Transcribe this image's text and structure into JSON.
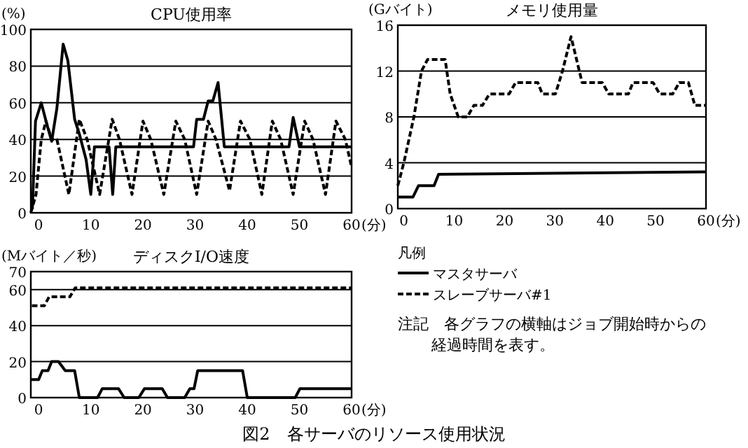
{
  "chart_data": [
    {
      "type": "line",
      "title": "CPU使用率",
      "ylabel": "(%)",
      "xlabel": "(分)",
      "xlim": [
        -1.5,
        60
      ],
      "xticks": [
        0,
        10,
        20,
        30,
        40,
        50,
        60
      ],
      "ylim": [
        0,
        100
      ],
      "yticks": [
        0,
        20,
        40,
        60,
        80,
        100
      ],
      "grid": "y",
      "series": [
        {
          "color": "#000000",
          "line_style": "solid",
          "x": [
            -1.2,
            -0.6,
            0.5,
            1.6,
            2.5,
            3.5,
            4.7,
            5.6,
            6.9,
            7.8,
            9.1,
            10,
            10.7,
            13.5,
            14.2,
            14.8,
            29.7,
            30.3,
            31.6,
            32.5,
            33.4,
            34.4,
            35.6,
            48,
            48.8,
            50,
            60
          ],
          "values": [
            2,
            50,
            60,
            48,
            39,
            57,
            92,
            83,
            51,
            43,
            29,
            10,
            36,
            36,
            10,
            36,
            36,
            51,
            51,
            61,
            61,
            71,
            36,
            36,
            52,
            36,
            36
          ]
        },
        {
          "color": "#000000",
          "line_style": "dashed",
          "x": [
            -1.5,
            -0.5,
            0.5,
            1.4,
            2.5,
            3.5,
            5.8,
            7.8,
            9.3,
            11.7,
            14.1,
            15.5,
            17.9,
            20,
            21.5,
            24,
            26.3,
            28,
            30.3,
            32.5,
            34,
            36.6,
            38.7,
            40.5,
            42.8,
            44.8,
            46.4,
            48.8,
            51,
            52.6,
            55,
            57,
            58.8,
            60
          ],
          "values": [
            0,
            10,
            40,
            50,
            40,
            40,
            10,
            51,
            40,
            10,
            51,
            40,
            10,
            50,
            40,
            10,
            50,
            40,
            10,
            50,
            40,
            12,
            50,
            40,
            10,
            50,
            40,
            10,
            50,
            40,
            10,
            50,
            40,
            25
          ]
        }
      ]
    },
    {
      "type": "line",
      "title": "メモリ使用量",
      "ylabel": "(Gバイト)",
      "xlabel": "(分)",
      "xlim": [
        -1.2,
        60
      ],
      "xticks": [
        0,
        10,
        20,
        30,
        40,
        50,
        60
      ],
      "ylim": [
        0,
        16
      ],
      "yticks": [
        0,
        4,
        8,
        12,
        16
      ],
      "grid": "y",
      "series": [
        {
          "color": "#000000",
          "line_style": "solid",
          "x": [
            -1.2,
            1.8,
            2.9,
            6,
            6.9,
            60
          ],
          "values": [
            1,
            1,
            2,
            2,
            3,
            3.2
          ]
        },
        {
          "color": "#000000",
          "line_style": "dashed",
          "x": [
            -1.2,
            0,
            2,
            3.5,
            4.7,
            8.2,
            9.2,
            10.8,
            12.6,
            13.9,
            15.6,
            17,
            20.9,
            22.2,
            26.6,
            27.5,
            30.1,
            31.5,
            33.2,
            35.4,
            39.4,
            40.7,
            44.6,
            45.5,
            49.5,
            50.8,
            53.4,
            54.7,
            56.5,
            57.8,
            60
          ],
          "values": [
            2,
            4,
            8,
            12,
            13,
            13,
            10,
            8,
            8,
            9,
            9,
            10,
            10,
            11,
            11,
            10,
            10,
            12,
            15,
            11,
            11,
            10,
            10,
            11,
            11,
            10,
            10,
            11,
            11,
            9,
            9
          ]
        }
      ]
    },
    {
      "type": "line",
      "title": "ディスクI/O速度",
      "ylabel": "(Mバイト／秒)",
      "xlabel": "(分)",
      "xlim": [
        -1.5,
        60
      ],
      "xticks": [
        0,
        10,
        20,
        30,
        40,
        50,
        60
      ],
      "ylim": [
        0,
        70
      ],
      "yticks": [
        0,
        20,
        40,
        60,
        70
      ],
      "grid": "y",
      "legend": "right",
      "legend_title": "凡例",
      "series": [
        {
          "name": "マスタサーバ",
          "color": "#000000",
          "line_style": "solid",
          "x": [
            -1.5,
            0,
            0.7,
            1.8,
            2.5,
            3.8,
            5.1,
            6.9,
            7.8,
            11.3,
            12.2,
            15.3,
            16.4,
            19.2,
            20.3,
            23.7,
            24.7,
            28,
            29,
            29.8,
            30.5,
            39.1,
            40,
            49.2,
            50.1,
            60
          ],
          "values": [
            10,
            10,
            15,
            15,
            20,
            20,
            15,
            15,
            0,
            0,
            5,
            5,
            0,
            0,
            5,
            5,
            0,
            0,
            5,
            5,
            15,
            15,
            0,
            0,
            5,
            5
          ]
        },
        {
          "name": "スレーブサーバ#1",
          "color": "#000000",
          "line_style": "dashed",
          "x": [
            -1.3,
            1.1,
            2,
            6,
            7,
            60
          ],
          "values": [
            51,
            51,
            56,
            56,
            61,
            61
          ]
        }
      ],
      "annotations": [
        "注記　各グラフの横軸はジョブ開始時からの経過時間を表す。",
        "図2　各サーバのリソース使用状況"
      ]
    }
  ]
}
